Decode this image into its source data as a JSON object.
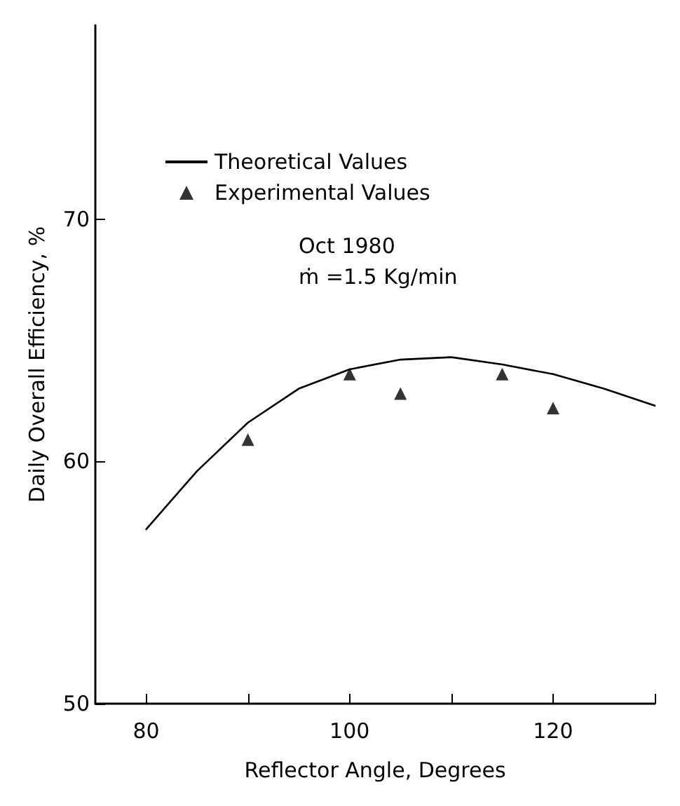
{
  "chart_data": {
    "type": "line",
    "xlabel": "Reflector Angle, Degrees",
    "ylabel": "Daily Overall Efficiency, %",
    "xlim": [
      75,
      130
    ],
    "ylim": [
      50,
      78
    ],
    "xticks": [
      80,
      {
        "value": 90,
        "label": null
      },
      100,
      {
        "value": 110,
        "label": null
      },
      120,
      {
        "value": 130,
        "label": null
      }
    ],
    "yticks": [
      50,
      60,
      70
    ],
    "grid": false,
    "legend": "top",
    "annotations": [
      "Oct 1980",
      "ṁ =1.5 Kg/min"
    ],
    "series": [
      {
        "name": "Theoretical Values",
        "type": "line",
        "color": "#000000",
        "marker": "none",
        "line_style": "solid",
        "x": [
          80,
          85,
          90,
          95,
          100,
          105,
          110,
          115,
          120,
          125,
          130
        ],
        "values": [
          57.2,
          59.6,
          61.6,
          63.0,
          63.8,
          64.2,
          64.3,
          64.0,
          63.6,
          63.0,
          62.3
        ]
      },
      {
        "name": "Experimental Values",
        "type": "scatter",
        "color": "#000000",
        "marker": "triangle",
        "x": [
          90,
          100,
          105,
          115,
          120
        ],
        "values": [
          60.9,
          63.6,
          62.8,
          63.6,
          62.2
        ]
      }
    ]
  }
}
